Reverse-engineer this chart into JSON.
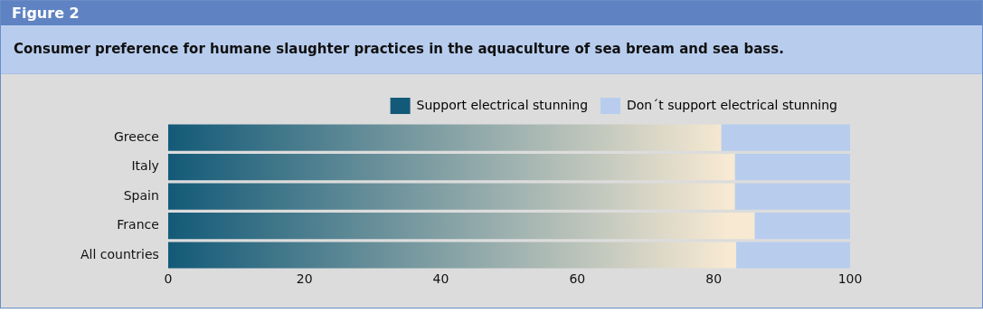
{
  "chart_data": {
    "type": "bar",
    "title": "Figure 2",
    "subtitle": "Consumer preference for humane slaughter practices in the aquaculture of sea bream and sea bass.",
    "orientation": "horizontal",
    "stacked": true,
    "categories": [
      "Greece",
      "Italy",
      "Spain",
      "France",
      "All countries"
    ],
    "series": [
      {
        "name": "Support electrical stunning",
        "color": "#135a78",
        "values": [
          81.1,
          83.1,
          83.1,
          86.0,
          83.3
        ]
      },
      {
        "name": "Don´t support electrical stunning",
        "color": "#b8cdee",
        "values": [
          18.9,
          16.9,
          16.9,
          14.0,
          16.7
        ]
      }
    ],
    "xlim": [
      0,
      100
    ],
    "xticks": [
      0,
      20,
      40,
      60,
      80,
      100
    ],
    "grid": false,
    "legend": "top right"
  }
}
